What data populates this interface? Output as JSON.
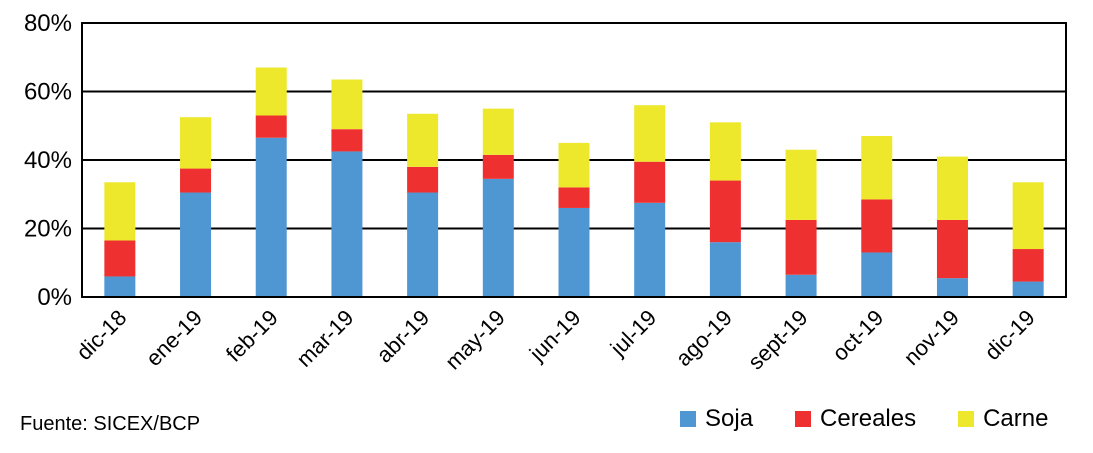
{
  "chart_data": {
    "type": "bar",
    "stacked": true,
    "categories": [
      "dic-18",
      "ene-19",
      "feb-19",
      "mar-19",
      "abr-19",
      "may-19",
      "jun-19",
      "jul-19",
      "ago-19",
      "sept-19",
      "oct-19",
      "nov-19",
      "dic-19"
    ],
    "series": [
      {
        "name": "Soja",
        "color": "#4f97d3",
        "values": [
          6,
          30.5,
          46.5,
          42.5,
          30.5,
          34.5,
          26,
          27.5,
          16,
          6.5,
          13,
          5.5,
          4.5
        ]
      },
      {
        "name": "Cereales",
        "color": "#ee3030",
        "values": [
          10.5,
          7,
          6.5,
          6.5,
          7.5,
          7,
          6,
          12,
          18,
          16,
          15.5,
          17,
          9.5
        ]
      },
      {
        "name": "Carne",
        "color": "#eee82c",
        "values": [
          17,
          15,
          14,
          14.5,
          15.5,
          13.5,
          13,
          16.5,
          17,
          20.5,
          18.5,
          18.5,
          19.5
        ]
      }
    ],
    "ylim": [
      0,
      80
    ],
    "yticks": [
      "0%",
      "20%",
      "40%",
      "60%",
      "80%"
    ],
    "ytick_values": [
      0,
      20,
      40,
      60,
      80
    ],
    "grid": true,
    "legend_position": "bottom-right"
  },
  "source": "Fuente: SICEX/BCP"
}
